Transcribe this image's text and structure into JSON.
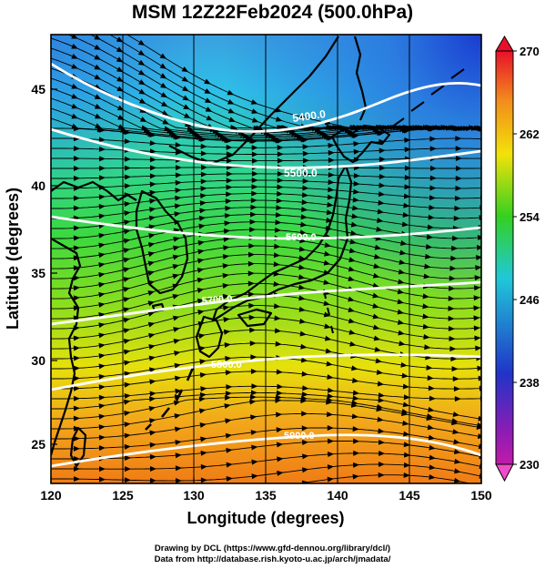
{
  "title": "MSM 12Z22Feb2024 (500.0hPa)",
  "map": {
    "region": "Japan and surrounding seas",
    "lon_range": [
      120,
      150
    ],
    "lat_range": [
      22.4,
      47.6
    ],
    "x_ticks": [
      "120",
      "125",
      "130",
      "135",
      "140",
      "145",
      "150"
    ],
    "y_ticks": [
      "25",
      "30",
      "35",
      "40",
      "45"
    ],
    "xlabel": "Longitude (degrees)",
    "ylabel": "Latitude  (degrees)",
    "field": "temperature (colour shading)",
    "vectors": "wind streamlines with arrowheads",
    "contours": [
      {
        "label": "5400.0"
      },
      {
        "label": "5500.0"
      },
      {
        "label": "5600.0"
      },
      {
        "label": "5700.0"
      },
      {
        "label": "5800.0"
      },
      {
        "label": "5900.0"
      }
    ]
  },
  "colorbar": {
    "ticks": [
      "270",
      "262",
      "254",
      "246",
      "238",
      "230"
    ],
    "min": 230,
    "max": 270,
    "colors": {
      "high": "#e8102a",
      "orange": "#f28c1c",
      "yellow": "#f2e20a",
      "green": "#1ec81e",
      "cyan": "#20c8d8",
      "blue": "#2034c8",
      "purple": "#8c1cb4",
      "low": "#f04cc8"
    }
  },
  "footer": {
    "line1": "Drawing by DCL (https://www.gfd-dennou.org/library/dcl/)",
    "line2": "Data from http://database.rish.kyoto-u.ac.jp/arch/jmadata/"
  }
}
